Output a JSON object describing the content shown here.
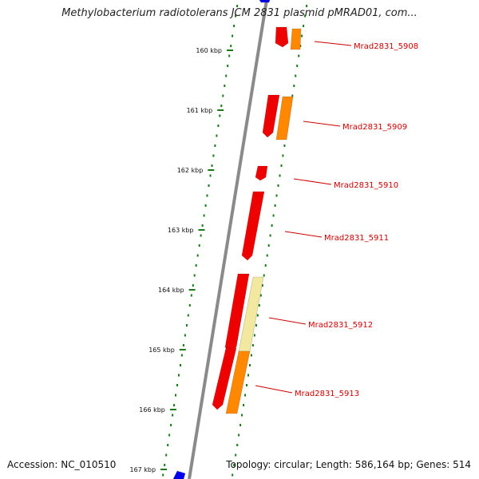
{
  "title": "Methylobacterium radiotolerans JCM 2831 plasmid pMRAD01, com...",
  "footer": {
    "accession": "Accession: NC_010510",
    "summary": "Topology: circular; Length: 586,164 bp; Genes: 514"
  },
  "colors": {
    "backbone": "#8a8a8a",
    "tick": "#1a7a1a",
    "cds_red": "#ee0000",
    "cds_orange": "#ff8800",
    "cds_pale": "#f2e8a0",
    "cds_blue": "#0000ee",
    "label": "#cc0000"
  },
  "ticks": [
    "160 kbp",
    "161 kbp",
    "162 kbp",
    "163 kbp",
    "164 kbp",
    "165 kbp",
    "166 kbp",
    "167 kbp"
  ],
  "genes": [
    {
      "label": "Mrad2831_5908"
    },
    {
      "label": "Mrad2831_5909"
    },
    {
      "label": "Mrad2831_5910"
    },
    {
      "label": "Mrad2831_5911"
    },
    {
      "label": "Mrad2831_5912"
    },
    {
      "label": "Mrad2831_5913"
    }
  ]
}
